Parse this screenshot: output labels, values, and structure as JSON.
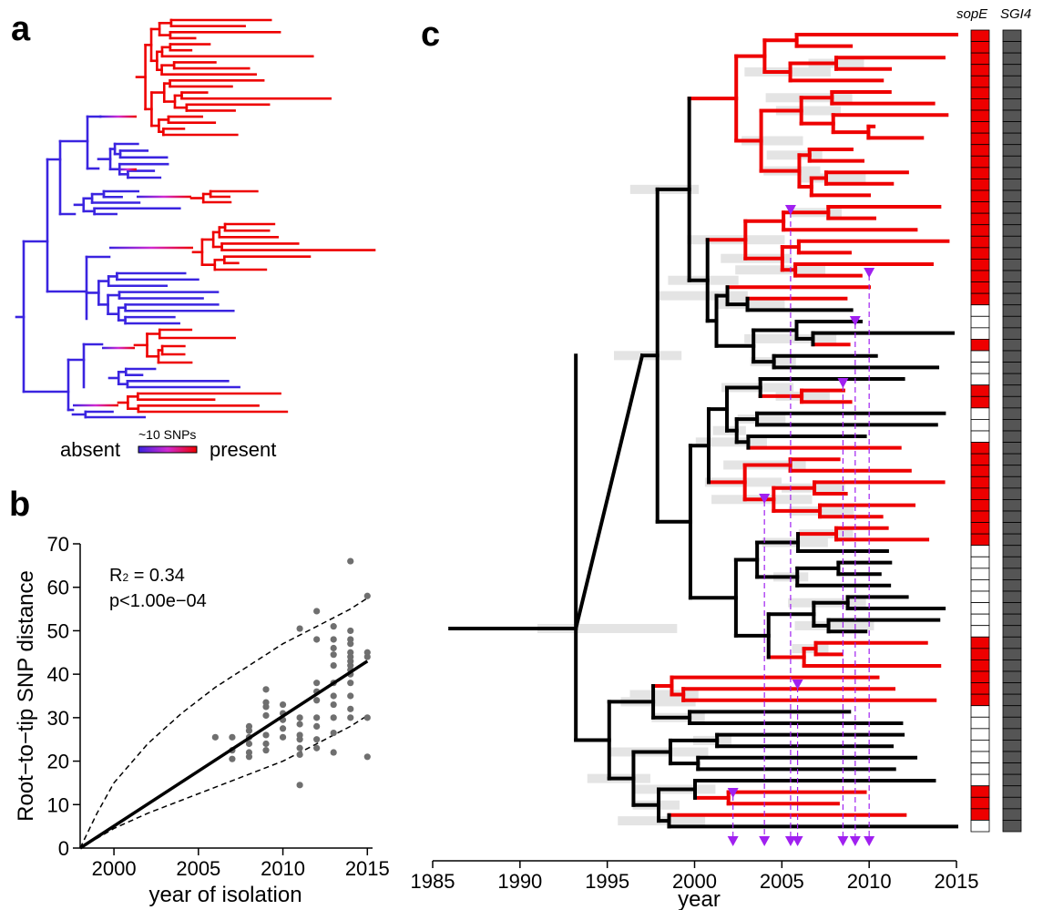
{
  "panels": {
    "a": "a",
    "b": "b",
    "c": "c"
  },
  "colors": {
    "absent": "#3a24e0",
    "present": "#ee0000",
    "mid": "#d02ad0",
    "black": "#000000",
    "ci_bar": "#e4e4e4",
    "arrow": "#a020f0",
    "sgi4": "#555555"
  },
  "legend_a": {
    "left": "absent",
    "right": "present",
    "top": "~10 SNPs"
  },
  "annotations_b": {
    "r2_prefix": "R",
    "r2_sub": "2",
    "r2_rest": " = 0.34",
    "p": "p<1.00e−04"
  },
  "strip_headers": {
    "sope": "sopE",
    "sgi4": "SGI4"
  },
  "chart_data": [
    {
      "type": "scatter",
      "panel": "b",
      "xlabel": "year of isolation",
      "ylabel": "Root−to−tip SNP distance",
      "xlim": [
        1998,
        2015.2
      ],
      "ylim": [
        0,
        70
      ],
      "xticks": [
        2000,
        2005,
        2010,
        2015
      ],
      "yticks": [
        0,
        10,
        20,
        30,
        40,
        50,
        60,
        70
      ],
      "regression": {
        "x": [
          1998,
          2015
        ],
        "y": [
          0,
          43
        ]
      },
      "ci_upper": {
        "x": [
          1998,
          1999,
          2000,
          2002,
          2004,
          2006,
          2008,
          2010,
          2012,
          2014,
          2015
        ],
        "y": [
          0,
          8,
          15,
          24,
          31,
          37,
          42,
          47,
          51,
          55,
          57.5
        ]
      },
      "ci_lower": {
        "x": [
          1998,
          2000,
          2002,
          2004,
          2006,
          2008,
          2010,
          2012,
          2014,
          2015
        ],
        "y": [
          0,
          4.5,
          8,
          11,
          14,
          17,
          20,
          24,
          28,
          30.5
        ]
      },
      "points": {
        "x": [
          2006,
          2007,
          2007,
          2007,
          2008,
          2008,
          2008,
          2008,
          2008,
          2008,
          2009,
          2009,
          2009,
          2009,
          2009,
          2009,
          2009,
          2010,
          2010,
          2010,
          2010,
          2010,
          2011,
          2011,
          2011,
          2011,
          2011,
          2011,
          2011,
          2011,
          2012,
          2012,
          2012,
          2012,
          2012,
          2012,
          2012,
          2012,
          2012,
          2013,
          2013,
          2013,
          2013,
          2013,
          2013,
          2013,
          2013,
          2013,
          2013,
          2013,
          2014,
          2014,
          2014,
          2014,
          2014,
          2014,
          2014,
          2014,
          2014,
          2014,
          2014,
          2014,
          2014,
          2014,
          2015,
          2015,
          2015,
          2015,
          2015
        ],
        "y": [
          25.5,
          20.5,
          22.5,
          25.5,
          21,
          22,
          24,
          25.5,
          27,
          28,
          22.5,
          24,
          26,
          30.5,
          32.5,
          33.5,
          36.5,
          25.5,
          27.5,
          29.5,
          31,
          33,
          14.5,
          21.5,
          23,
          25,
          26,
          28.5,
          30,
          50.5,
          23,
          25,
          28,
          30,
          34,
          36,
          38,
          48,
          54.5,
          22,
          26.5,
          30,
          33,
          35,
          38,
          42,
          44.5,
          46,
          48,
          51,
          30,
          32,
          35,
          38,
          40,
          41,
          42,
          43,
          44,
          45,
          47,
          48,
          50,
          66,
          21,
          30,
          44,
          45,
          58
        ]
      }
    },
    {
      "type": "tree",
      "panel": "c",
      "xlabel": "year",
      "xlim": [
        1985,
        2015
      ],
      "xticks": [
        1985,
        1990,
        1995,
        2000,
        2005,
        2010,
        2015
      ],
      "sopE_acquisition_years": [
        2002.2,
        2004,
        2005.5,
        2005.9,
        2008.5,
        2009.2,
        2010
      ],
      "sopE_tips": [
        1,
        1,
        1,
        1,
        1,
        1,
        1,
        1,
        1,
        1,
        1,
        1,
        1,
        1,
        1,
        1,
        1,
        1,
        1,
        1,
        1,
        1,
        1,
        1,
        0,
        0,
        0,
        1,
        0,
        0,
        0,
        1,
        1,
        0,
        0,
        0,
        1,
        1,
        1,
        1,
        1,
        1,
        1,
        1,
        1,
        0,
        0,
        0,
        0,
        0,
        0,
        0,
        0,
        1,
        1,
        1,
        1,
        1,
        1,
        0,
        0,
        0,
        0,
        0,
        0,
        0,
        1,
        1,
        1,
        0
      ],
      "sgi4_tips": "all present"
    }
  ]
}
